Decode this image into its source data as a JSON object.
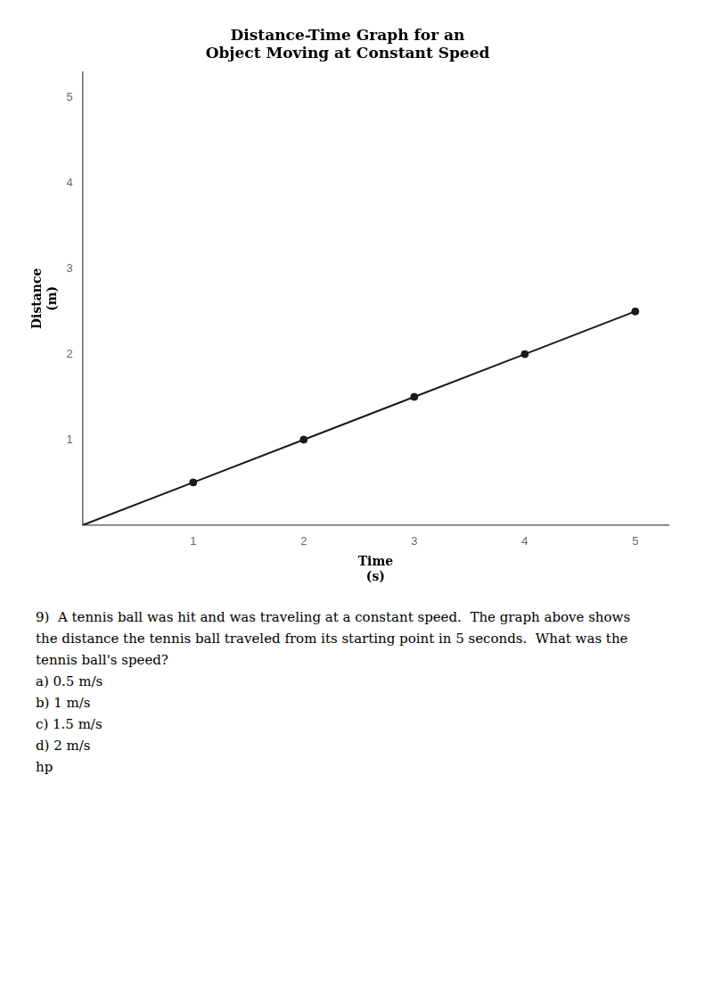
{
  "chart_data": {
    "type": "line",
    "title": [
      "Distance-Time Graph for an",
      "Object Moving at Constant Speed"
    ],
    "x_label": [
      "Time",
      "(s)"
    ],
    "y_label": [
      "Distance",
      "(m)"
    ],
    "series": [
      {
        "type": "line",
        "marker": "none",
        "color": "#1a1a1a",
        "x": [
          0,
          1,
          2,
          3,
          4,
          5
        ],
        "values": [
          0,
          0.5,
          1.0,
          1.5,
          2.0,
          2.5
        ]
      },
      {
        "type": "scatter",
        "marker": "circle",
        "color": "#1a1a1a",
        "x": [
          1,
          2,
          3,
          4,
          5
        ],
        "values": [
          0.5,
          1.0,
          1.5,
          2.0,
          2.5
        ]
      }
    ],
    "xlim": [
      0,
      5.3
    ],
    "ylim": [
      0,
      5.3
    ],
    "xticks": [
      1,
      2,
      3,
      4,
      5
    ],
    "yticks": [
      1,
      2,
      3,
      4,
      5
    ],
    "grid": false,
    "annotations": [
      "9)  A tennis ball was hit and was traveling at a constant speed.  The graph above shows",
      "the distance the tennis ball traveled from its starting point in 5 seconds.  What was the",
      "tennis ball's speed?",
      "a) 0.5 m/s",
      "b) 1 m/s",
      "c) 1.5 m/s",
      "d) 2 m/s",
      "hp"
    ]
  }
}
